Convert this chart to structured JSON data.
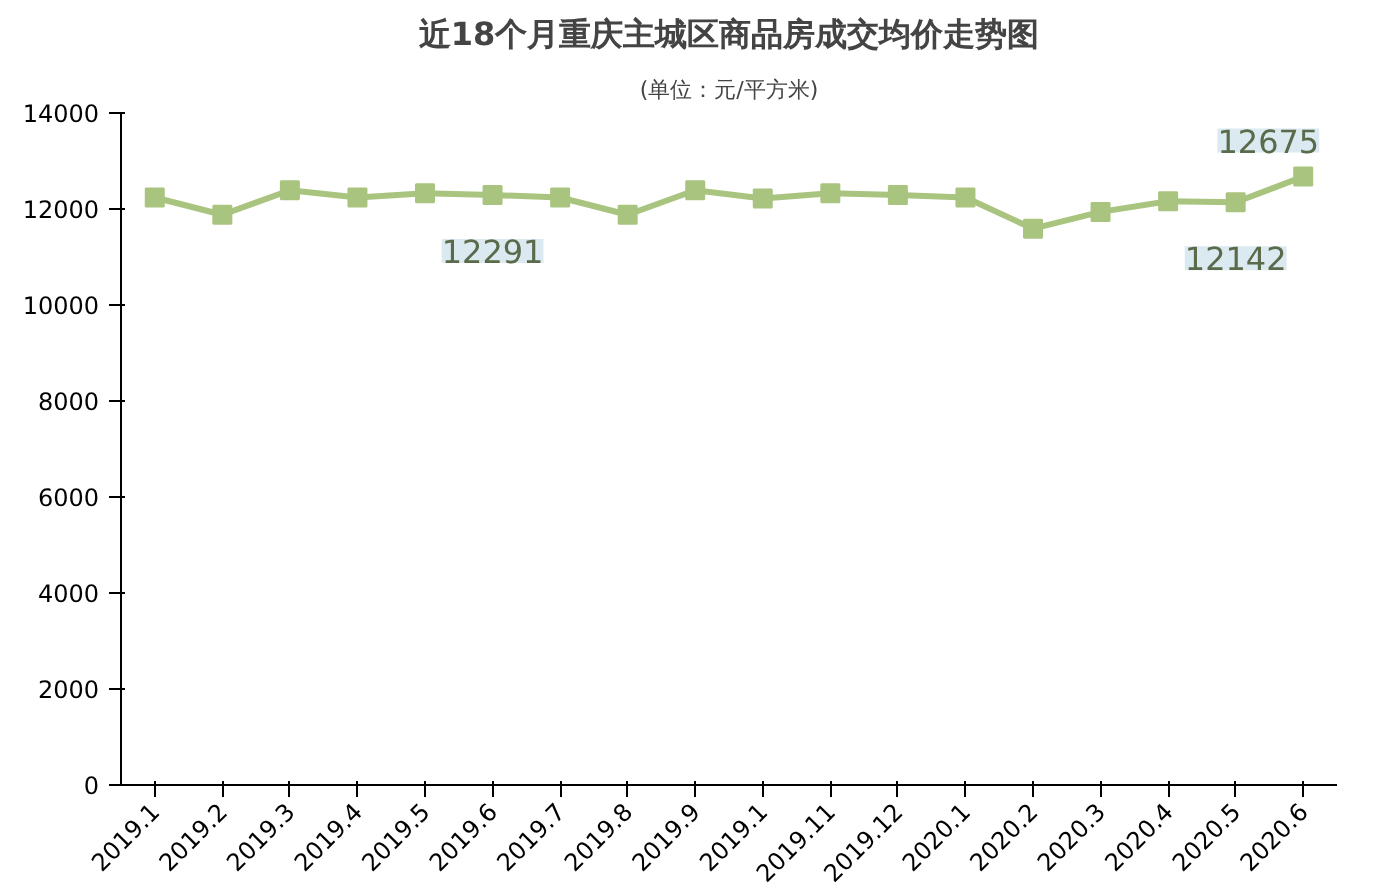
{
  "chart_data": {
    "type": "line",
    "title": "近18个月重庆主城区商品房成交均价走势图",
    "subtitle": "(单位：元/平方米)",
    "categories": [
      "2019.1",
      "2019.2",
      "2019.3",
      "2019.4",
      "2019.5",
      "2019.6",
      "2019.7",
      "2019.8",
      "2019.9",
      "2019.1",
      "2019.11",
      "2019.12",
      "2020.1",
      "2020.2",
      "2020.3",
      "2020.4",
      "2020.5",
      "2020.6"
    ],
    "series": [
      {
        "color": "#a9c47f",
        "values": [
          12240,
          11880,
          12390,
          12240,
          12330,
          12291,
          12240,
          11880,
          12390,
          12220,
          12330,
          12290,
          12240,
          11590,
          11940,
          12160,
          12142,
          12675
        ],
        "value_labels": [
          null,
          null,
          null,
          null,
          null,
          "12291",
          null,
          null,
          null,
          null,
          null,
          null,
          null,
          null,
          null,
          null,
          "12142",
          "12675"
        ]
      }
    ],
    "ylim": [
      0,
      14000
    ],
    "yticks": [
      0,
      2000,
      4000,
      6000,
      8000,
      10000,
      12000,
      14000
    ],
    "grid": false,
    "marker": "square",
    "line_style": "solid"
  }
}
